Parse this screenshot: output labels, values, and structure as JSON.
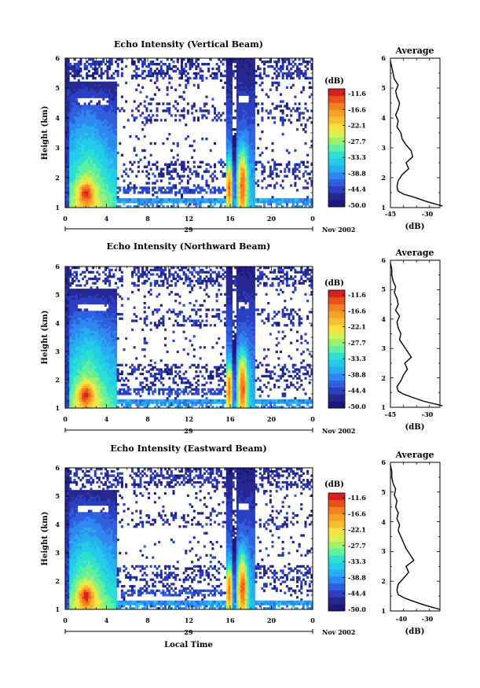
{
  "colorbar": {
    "unit": "(dB)",
    "labels": [
      "-11.6",
      "-16.6",
      "-22.1",
      "-27.7",
      "-33.3",
      "-38.8",
      "-44.4",
      "-50.0"
    ],
    "colors": [
      "#1a1a7a",
      "#26288f",
      "#2b3fc1",
      "#3060e0",
      "#2f88f0",
      "#28aef0",
      "#22cbe8",
      "#2de0d0",
      "#60f0a0",
      "#a0f070",
      "#d8f050",
      "#f8e040",
      "#f8c030",
      "#f8a028",
      "#f08020",
      "#e85020",
      "#d82020"
    ]
  },
  "chart_data": [
    {
      "type": "heatmap",
      "title": "Echo Intensity (Vertical Beam)",
      "ylabel": "Height (km)",
      "xlabel": "",
      "ylim": [
        1,
        6
      ],
      "xlim": [
        0,
        24
      ],
      "xticks": [
        "0",
        "4",
        "8",
        "12",
        "16",
        "20",
        "0"
      ],
      "yticks": [
        "1",
        "2",
        "3",
        "4",
        "5",
        "6"
      ],
      "date_day": "29",
      "date_label": "Nov 2002",
      "profile": {
        "title": "Average",
        "xlabel": "(dB)",
        "xticks": [
          "-45",
          "-30"
        ],
        "yticks": [
          "1",
          "2",
          "3",
          "4",
          "5",
          "6"
        ],
        "xlim": [
          -45,
          -26
        ],
        "height_km": [
          1.05,
          1.2,
          1.35,
          1.45,
          1.55,
          1.7,
          1.9,
          2.1,
          2.3,
          2.5,
          2.7,
          2.9,
          3.1,
          3.3,
          3.5,
          3.7,
          3.9,
          4.1,
          4.3,
          4.5,
          4.7,
          4.9,
          5.1,
          5.3,
          5.5,
          5.7,
          5.9
        ],
        "power_db": [
          -25,
          -31,
          -36,
          -40,
          -42,
          -42.5,
          -42,
          -40.5,
          -38,
          -39,
          -36.5,
          -37,
          -39,
          -40.5,
          -41,
          -42.5,
          -42,
          -43,
          -42,
          -41.5,
          -42.5,
          -43,
          -42,
          -43.5,
          -44,
          -44.5,
          -45
        ]
      }
    },
    {
      "type": "heatmap",
      "title": "Echo Intensity (Northward Beam)",
      "ylabel": "Height (km)",
      "xlabel": "",
      "ylim": [
        1,
        6
      ],
      "xlim": [
        0,
        24
      ],
      "xticks": [
        "0",
        "4",
        "8",
        "12",
        "16",
        "20",
        "0"
      ],
      "yticks": [
        "1",
        "2",
        "3",
        "4",
        "5",
        "6"
      ],
      "date_day": "29",
      "date_label": "Nov 2002",
      "profile": {
        "title": "Average",
        "xlabel": "(dB)",
        "xticks": [
          "-45",
          "-30"
        ],
        "yticks": [
          "1",
          "2",
          "3",
          "4",
          "5",
          "6"
        ],
        "xlim": [
          -45,
          -26
        ],
        "height_km": [
          1.05,
          1.2,
          1.35,
          1.45,
          1.55,
          1.7,
          1.9,
          2.1,
          2.3,
          2.5,
          2.7,
          2.9,
          3.1,
          3.3,
          3.5,
          3.7,
          3.9,
          4.1,
          4.3,
          4.5,
          4.7,
          4.9,
          5.1,
          5.3,
          5.5,
          5.7,
          5.9
        ],
        "power_db": [
          -25,
          -32,
          -37,
          -40,
          -42,
          -42.5,
          -41,
          -40,
          -38.5,
          -39.5,
          -37,
          -38.5,
          -40,
          -41.5,
          -41,
          -42,
          -42.5,
          -41.5,
          -43,
          -42,
          -42.5,
          -43.5,
          -43,
          -44,
          -44.5,
          -44.5,
          -45
        ]
      }
    },
    {
      "type": "heatmap",
      "title": "Echo Intensity (Eastward Beam)",
      "ylabel": "Height (km)",
      "xlabel": "Local Time",
      "ylim": [
        1,
        6
      ],
      "xlim": [
        0,
        24
      ],
      "xticks": [
        "0",
        "4",
        "8",
        "12",
        "16",
        "20",
        "0"
      ],
      "yticks": [
        "1",
        "2",
        "3",
        "4",
        "5",
        "6"
      ],
      "date_day": "29",
      "date_label": "Nov 2002",
      "profile": {
        "title": "Average",
        "xlabel": "(dB)",
        "xticks": [
          "-40",
          "-30"
        ],
        "yticks": [
          "1",
          "2",
          "3",
          "4",
          "5",
          "6"
        ],
        "xlim": [
          -45,
          -26
        ],
        "height_km": [
          1.05,
          1.2,
          1.35,
          1.45,
          1.55,
          1.7,
          1.9,
          2.1,
          2.3,
          2.5,
          2.7,
          2.9,
          3.1,
          3.3,
          3.5,
          3.7,
          3.9,
          4.1,
          4.3,
          4.5,
          4.7,
          4.9,
          5.1,
          5.3,
          5.5,
          5.7,
          5.9
        ],
        "power_db": [
          -26,
          -32,
          -37,
          -40,
          -42,
          -42.5,
          -42,
          -40,
          -38,
          -39,
          -36,
          -37.5,
          -39,
          -40,
          -41,
          -42,
          -41.5,
          -42.5,
          -42,
          -43,
          -42.5,
          -43.5,
          -43,
          -44,
          -44.5,
          -44.5,
          -45
        ]
      }
    }
  ]
}
